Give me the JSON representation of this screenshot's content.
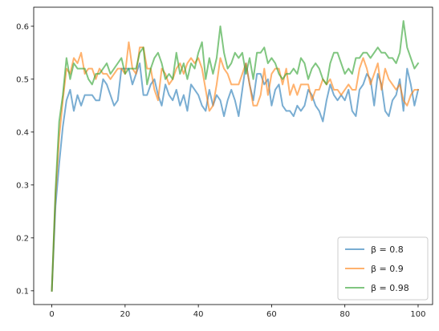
{
  "chart_data": {
    "type": "line",
    "title": "",
    "xlabel": "",
    "ylabel": "",
    "xlim": [
      -4.95,
      103.95
    ],
    "ylim": [
      0.074,
      0.636
    ],
    "xticks": [
      0,
      20,
      40,
      60,
      80,
      100
    ],
    "yticks": [
      0.1,
      0.2,
      0.3,
      0.4,
      0.5,
      0.6
    ],
    "grid": false,
    "legend_position": "lower-right",
    "series": [
      {
        "name": "β = 0.8",
        "color": "#1f77b4",
        "y": [
          0.1,
          0.26,
          0.34,
          0.41,
          0.46,
          0.48,
          0.44,
          0.47,
          0.45,
          0.47,
          0.47,
          0.47,
          0.46,
          0.46,
          0.5,
          0.49,
          0.47,
          0.45,
          0.46,
          0.52,
          0.52,
          0.52,
          0.49,
          0.51,
          0.53,
          0.47,
          0.47,
          0.49,
          0.5,
          0.47,
          0.45,
          0.49,
          0.47,
          0.46,
          0.48,
          0.45,
          0.47,
          0.44,
          0.49,
          0.48,
          0.47,
          0.45,
          0.44,
          0.48,
          0.45,
          0.47,
          0.46,
          0.43,
          0.46,
          0.48,
          0.46,
          0.43,
          0.48,
          0.53,
          0.49,
          0.46,
          0.51,
          0.51,
          0.49,
          0.5,
          0.45,
          0.48,
          0.49,
          0.45,
          0.44,
          0.44,
          0.43,
          0.45,
          0.44,
          0.45,
          0.48,
          0.47,
          0.45,
          0.44,
          0.42,
          0.46,
          0.49,
          0.47,
          0.46,
          0.47,
          0.46,
          0.48,
          0.44,
          0.43,
          0.48,
          0.49,
          0.51,
          0.5,
          0.45,
          0.51,
          0.49,
          0.44,
          0.43,
          0.46,
          0.47,
          0.5,
          0.44,
          0.52,
          0.49,
          0.45,
          0.48
        ]
      },
      {
        "name": "β = 0.9",
        "color": "#ff7f0e",
        "y": [
          0.1,
          0.28,
          0.39,
          0.46,
          0.52,
          0.51,
          0.54,
          0.53,
          0.55,
          0.51,
          0.52,
          0.52,
          0.5,
          0.52,
          0.51,
          0.51,
          0.5,
          0.51,
          0.52,
          0.52,
          0.51,
          0.57,
          0.52,
          0.51,
          0.56,
          0.56,
          0.52,
          0.52,
          0.48,
          0.46,
          0.52,
          0.51,
          0.49,
          0.5,
          0.52,
          0.53,
          0.51,
          0.53,
          0.54,
          0.53,
          0.54,
          0.52,
          0.48,
          0.44,
          0.45,
          0.49,
          0.54,
          0.52,
          0.51,
          0.49,
          0.49,
          0.49,
          0.51,
          0.53,
          0.49,
          0.45,
          0.45,
          0.47,
          0.52,
          0.47,
          0.51,
          0.52,
          0.52,
          0.49,
          0.52,
          0.47,
          0.49,
          0.47,
          0.49,
          0.49,
          0.49,
          0.46,
          0.48,
          0.48,
          0.5,
          0.49,
          0.5,
          0.48,
          0.48,
          0.47,
          0.48,
          0.49,
          0.48,
          0.48,
          0.52,
          0.54,
          0.52,
          0.49,
          0.51,
          0.53,
          0.48,
          0.52,
          0.5,
          0.49,
          0.48,
          0.49,
          0.46,
          0.45,
          0.47,
          0.48,
          0.48
        ]
      },
      {
        "name": "β = 0.98",
        "color": "#2ca02c",
        "y": [
          0.1,
          0.29,
          0.42,
          0.47,
          0.54,
          0.5,
          0.53,
          0.52,
          0.52,
          0.52,
          0.5,
          0.49,
          0.51,
          0.51,
          0.52,
          0.53,
          0.51,
          0.52,
          0.53,
          0.54,
          0.51,
          0.52,
          0.52,
          0.52,
          0.55,
          0.56,
          0.49,
          0.52,
          0.54,
          0.55,
          0.53,
          0.5,
          0.51,
          0.5,
          0.55,
          0.51,
          0.53,
          0.5,
          0.53,
          0.52,
          0.55,
          0.57,
          0.5,
          0.54,
          0.51,
          0.54,
          0.6,
          0.55,
          0.52,
          0.53,
          0.55,
          0.54,
          0.55,
          0.51,
          0.54,
          0.5,
          0.55,
          0.55,
          0.56,
          0.53,
          0.54,
          0.53,
          0.51,
          0.5,
          0.51,
          0.51,
          0.52,
          0.51,
          0.54,
          0.53,
          0.5,
          0.52,
          0.53,
          0.52,
          0.5,
          0.49,
          0.53,
          0.55,
          0.55,
          0.53,
          0.51,
          0.52,
          0.51,
          0.54,
          0.54,
          0.55,
          0.55,
          0.54,
          0.55,
          0.56,
          0.55,
          0.55,
          0.54,
          0.54,
          0.53,
          0.55,
          0.61,
          0.56,
          0.54,
          0.52,
          0.53
        ]
      }
    ]
  }
}
